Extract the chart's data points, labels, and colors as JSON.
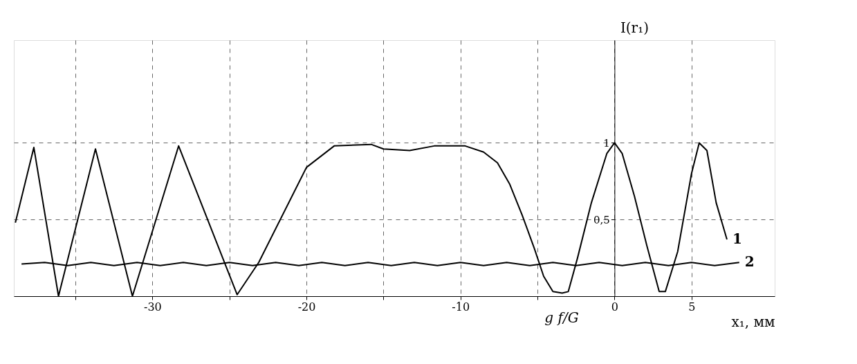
{
  "chart_data": {
    "type": "line",
    "xlabel": "x₁, мм",
    "ylabel": "I(r₁)",
    "xlim": [
      -39,
      10.4
    ],
    "ylim": [
      0,
      1.67
    ],
    "xticks": [
      {
        "value": -35,
        "label": null
      },
      -30,
      {
        "value": -25,
        "label": null
      },
      -20,
      {
        "value": -15,
        "label": null
      },
      -10,
      {
        "value": -5,
        "label": null
      },
      0,
      5
    ],
    "yticks": [
      {
        "value": 0.5,
        "label": "0,5"
      },
      1
    ],
    "grid": true,
    "legend": false,
    "marker": "none",
    "line_style": "solid",
    "annotations": [
      "g f/G"
    ],
    "series": [
      {
        "name": "1",
        "color": "#000000",
        "x": [
          -38.9,
          -37.7,
          -36.1,
          -33.7,
          -31.3,
          -28.3,
          -24.5,
          -23.1,
          -20.0,
          -18.2,
          -15.8,
          -15.0,
          -13.3,
          -11.7,
          -9.7,
          -8.5,
          -7.6,
          -6.8,
          -6.0,
          -5.2,
          -4.6,
          -4.0,
          -3.4,
          -3.0,
          -2.4,
          -1.5,
          -0.5,
          0,
          0.5,
          1.3,
          2.1,
          2.9,
          3.3,
          4.1,
          5.0,
          5.5,
          6.0,
          6.6,
          7.3
        ],
        "values": [
          0.48,
          0.97,
          0.0,
          0.96,
          0.0,
          0.98,
          0.01,
          0.22,
          0.84,
          0.98,
          0.99,
          0.96,
          0.95,
          0.98,
          0.98,
          0.94,
          0.87,
          0.73,
          0.53,
          0.31,
          0.13,
          0.03,
          0.02,
          0.03,
          0.25,
          0.61,
          0.93,
          1.0,
          0.93,
          0.65,
          0.33,
          0.03,
          0.03,
          0.29,
          0.8,
          1.0,
          0.95,
          0.61,
          0.37
        ]
      },
      {
        "name": "2",
        "color": "#000000",
        "x": [
          -38.5,
          -37,
          -35.5,
          -34,
          -32.5,
          -31,
          -29.5,
          -28,
          -26.5,
          -25,
          -23.5,
          -22,
          -20.5,
          -19,
          -17.5,
          -16,
          -14.5,
          -13,
          -11.5,
          -10,
          -8.5,
          -7,
          -5.5,
          -4,
          -2.5,
          -1,
          0.5,
          2,
          3.5,
          5,
          6.5,
          8.1
        ],
        "values": [
          0.21,
          0.22,
          0.2,
          0.22,
          0.2,
          0.22,
          0.2,
          0.22,
          0.2,
          0.22,
          0.2,
          0.22,
          0.2,
          0.22,
          0.2,
          0.22,
          0.2,
          0.22,
          0.2,
          0.22,
          0.2,
          0.22,
          0.2,
          0.22,
          0.2,
          0.22,
          0.2,
          0.22,
          0.2,
          0.22,
          0.2,
          0.22
        ]
      }
    ]
  }
}
